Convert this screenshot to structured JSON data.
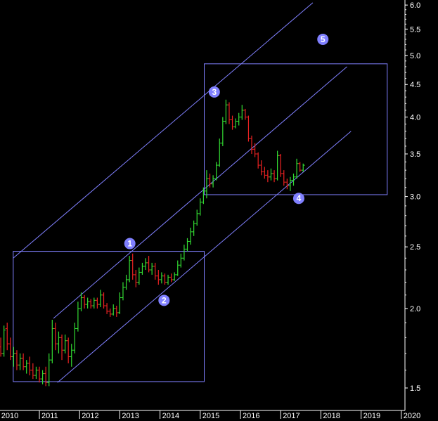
{
  "chart_data": {
    "type": "ohlc",
    "scale": "log",
    "ylim": [
      1.4,
      6.2
    ],
    "y_ticks": [
      "6.0",
      "5.5",
      "5.0",
      "4.5",
      "4.0",
      "3.5",
      "3.0",
      "2.5",
      "2.0",
      "1.5"
    ],
    "x_ticks": [
      "2010",
      "2011",
      "2012",
      "2013",
      "2014",
      "2015",
      "2016",
      "2017",
      "2018",
      "2019",
      "2020"
    ],
    "colors": {
      "background": "#000000",
      "up": "#33dd33",
      "down": "#ee2222",
      "annotation": "#8080ff",
      "axis": "#ffffff"
    },
    "bars": [
      [
        2009.95,
        1.78,
        1.86,
        1.72,
        1.74
      ],
      [
        2010.04,
        1.74,
        1.8,
        1.68,
        1.7
      ],
      [
        2010.12,
        1.7,
        1.88,
        1.68,
        1.85
      ],
      [
        2010.2,
        1.86,
        1.9,
        1.72,
        1.76
      ],
      [
        2010.28,
        1.76,
        1.8,
        1.66,
        1.68
      ],
      [
        2010.36,
        1.68,
        1.74,
        1.62,
        1.7
      ],
      [
        2010.44,
        1.7,
        1.72,
        1.6,
        1.63
      ],
      [
        2010.52,
        1.63,
        1.7,
        1.6,
        1.67
      ],
      [
        2010.6,
        1.67,
        1.7,
        1.6,
        1.62
      ],
      [
        2010.68,
        1.62,
        1.66,
        1.58,
        1.64
      ],
      [
        2010.76,
        1.64,
        1.68,
        1.57,
        1.6
      ],
      [
        2010.84,
        1.6,
        1.64,
        1.55,
        1.57
      ],
      [
        2010.92,
        1.57,
        1.62,
        1.55,
        1.6
      ],
      [
        2011.0,
        1.6,
        1.62,
        1.53,
        1.55
      ],
      [
        2011.08,
        1.55,
        1.6,
        1.52,
        1.58
      ],
      [
        2011.16,
        1.58,
        1.62,
        1.51,
        1.53
      ],
      [
        2011.24,
        1.53,
        1.7,
        1.51,
        1.66
      ],
      [
        2011.32,
        1.66,
        1.92,
        1.64,
        1.86
      ],
      [
        2011.4,
        1.86,
        1.9,
        1.72,
        1.76
      ],
      [
        2011.48,
        1.76,
        1.84,
        1.7,
        1.8
      ],
      [
        2011.56,
        1.8,
        1.82,
        1.66,
        1.72
      ],
      [
        2011.64,
        1.72,
        1.82,
        1.7,
        1.78
      ],
      [
        2011.72,
        1.78,
        1.8,
        1.64,
        1.68
      ],
      [
        2011.8,
        1.68,
        1.76,
        1.62,
        1.72
      ],
      [
        2011.88,
        1.72,
        1.9,
        1.7,
        1.86
      ],
      [
        2011.96,
        1.86,
        2.05,
        1.84,
        2.0
      ],
      [
        2012.04,
        2.0,
        2.12,
        1.98,
        2.08
      ],
      [
        2012.12,
        2.08,
        2.1,
        2.0,
        2.03
      ],
      [
        2012.2,
        2.03,
        2.08,
        2.0,
        2.05
      ],
      [
        2012.28,
        2.05,
        2.07,
        2.0,
        2.02
      ],
      [
        2012.36,
        2.02,
        2.08,
        2.0,
        2.06
      ],
      [
        2012.44,
        2.06,
        2.08,
        2.0,
        2.03
      ],
      [
        2012.52,
        2.03,
        2.14,
        2.01,
        2.1
      ],
      [
        2012.6,
        2.1,
        2.12,
        2.0,
        2.02
      ],
      [
        2012.68,
        2.02,
        2.04,
        1.96,
        1.98
      ],
      [
        2012.76,
        1.98,
        2.0,
        1.94,
        1.96
      ],
      [
        2012.84,
        1.96,
        2.03,
        1.95,
        2.0
      ],
      [
        2012.92,
        2.0,
        2.02,
        1.94,
        1.97
      ],
      [
        2013.0,
        1.97,
        2.12,
        1.96,
        2.08
      ],
      [
        2013.08,
        2.08,
        2.2,
        2.06,
        2.16
      ],
      [
        2013.16,
        2.16,
        2.26,
        2.14,
        2.22
      ],
      [
        2013.24,
        2.22,
        2.42,
        2.2,
        2.38
      ],
      [
        2013.32,
        2.38,
        2.44,
        2.22,
        2.26
      ],
      [
        2013.4,
        2.26,
        2.3,
        2.16,
        2.2
      ],
      [
        2013.48,
        2.2,
        2.32,
        2.18,
        2.28
      ],
      [
        2013.56,
        2.28,
        2.36,
        2.26,
        2.33
      ],
      [
        2013.64,
        2.33,
        2.4,
        2.3,
        2.36
      ],
      [
        2013.72,
        2.36,
        2.42,
        2.28,
        2.3
      ],
      [
        2013.8,
        2.3,
        2.36,
        2.26,
        2.33
      ],
      [
        2013.88,
        2.33,
        2.36,
        2.22,
        2.25
      ],
      [
        2013.96,
        2.25,
        2.3,
        2.18,
        2.22
      ],
      [
        2014.04,
        2.22,
        2.28,
        2.19,
        2.25
      ],
      [
        2014.12,
        2.25,
        2.27,
        2.18,
        2.2
      ],
      [
        2014.2,
        2.2,
        2.26,
        2.18,
        2.24
      ],
      [
        2014.28,
        2.24,
        2.27,
        2.2,
        2.22
      ],
      [
        2014.36,
        2.22,
        2.28,
        2.21,
        2.26
      ],
      [
        2014.44,
        2.26,
        2.38,
        2.25,
        2.34
      ],
      [
        2014.52,
        2.34,
        2.44,
        2.32,
        2.4
      ],
      [
        2014.6,
        2.4,
        2.52,
        2.38,
        2.48
      ],
      [
        2014.68,
        2.48,
        2.58,
        2.46,
        2.55
      ],
      [
        2014.76,
        2.55,
        2.68,
        2.52,
        2.64
      ],
      [
        2014.84,
        2.64,
        2.75,
        2.6,
        2.72
      ],
      [
        2014.92,
        2.72,
        2.86,
        2.7,
        2.82
      ],
      [
        2015.0,
        2.82,
        2.98,
        2.8,
        2.94
      ],
      [
        2015.08,
        2.94,
        3.1,
        2.92,
        3.06
      ],
      [
        2015.16,
        3.06,
        3.3,
        2.98,
        3.2
      ],
      [
        2015.24,
        3.2,
        3.26,
        3.1,
        3.14
      ],
      [
        2015.32,
        3.14,
        3.24,
        3.1,
        3.2
      ],
      [
        2015.4,
        3.2,
        3.4,
        3.18,
        3.36
      ],
      [
        2015.48,
        3.36,
        3.7,
        3.34,
        3.64
      ],
      [
        2015.56,
        3.64,
        4.0,
        3.6,
        3.94
      ],
      [
        2015.64,
        3.94,
        4.26,
        3.9,
        4.18
      ],
      [
        2015.72,
        4.18,
        4.22,
        3.9,
        3.96
      ],
      [
        2015.8,
        3.96,
        4.02,
        3.82,
        3.86
      ],
      [
        2015.88,
        3.86,
        3.98,
        3.84,
        3.94
      ],
      [
        2015.96,
        3.94,
        4.06,
        3.88,
        4.0
      ],
      [
        2016.04,
        4.0,
        4.18,
        3.96,
        4.1
      ],
      [
        2016.12,
        4.1,
        4.12,
        3.96,
        4.0
      ],
      [
        2016.2,
        4.0,
        4.02,
        3.66,
        3.7
      ],
      [
        2016.28,
        3.7,
        3.74,
        3.5,
        3.56
      ],
      [
        2016.36,
        3.56,
        3.64,
        3.46,
        3.5
      ],
      [
        2016.44,
        3.5,
        3.52,
        3.32,
        3.36
      ],
      [
        2016.52,
        3.36,
        3.42,
        3.24,
        3.28
      ],
      [
        2016.6,
        3.28,
        3.34,
        3.2,
        3.24
      ],
      [
        2016.68,
        3.24,
        3.3,
        3.16,
        3.22
      ],
      [
        2016.76,
        3.22,
        3.32,
        3.18,
        3.26
      ],
      [
        2016.84,
        3.26,
        3.3,
        3.16,
        3.2
      ],
      [
        2016.92,
        3.2,
        3.54,
        3.18,
        3.48
      ],
      [
        2017.0,
        3.48,
        3.5,
        3.22,
        3.26
      ],
      [
        2017.08,
        3.26,
        3.3,
        3.12,
        3.16
      ],
      [
        2017.16,
        3.16,
        3.2,
        3.08,
        3.12
      ],
      [
        2017.24,
        3.12,
        3.22,
        3.06,
        3.18
      ],
      [
        2017.32,
        3.18,
        3.26,
        3.12,
        3.22
      ],
      [
        2017.4,
        3.22,
        3.44,
        3.2,
        3.38
      ],
      [
        2017.48,
        3.38,
        3.4,
        3.28,
        3.3
      ],
      [
        2017.56,
        3.3,
        3.38,
        3.28,
        3.36
      ]
    ],
    "channel_lines": [
      {
        "points": [
          [
            2010.35,
            2.4
          ],
          [
            2017.8,
            6.05
          ]
        ]
      },
      {
        "points": [
          [
            2011.35,
            1.93
          ],
          [
            2018.65,
            4.8
          ]
        ]
      },
      {
        "points": [
          [
            2011.45,
            1.53
          ],
          [
            2018.75,
            3.8
          ]
        ]
      }
    ],
    "boxes": [
      {
        "x": [
          2010.35,
          2015.1
        ],
        "y": [
          1.535,
          2.46
        ]
      },
      {
        "x": [
          2015.1,
          2019.65
        ],
        "y": [
          3.02,
          4.85
        ]
      }
    ],
    "annotations": [
      {
        "label": "1",
        "x": 2013.25,
        "y": 2.53
      },
      {
        "label": "2",
        "x": 2014.1,
        "y": 2.06
      },
      {
        "label": "3",
        "x": 2015.35,
        "y": 4.38
      },
      {
        "label": "4",
        "x": 2017.45,
        "y": 2.98
      },
      {
        "label": "5",
        "x": 2018.05,
        "y": 5.3
      }
    ]
  }
}
